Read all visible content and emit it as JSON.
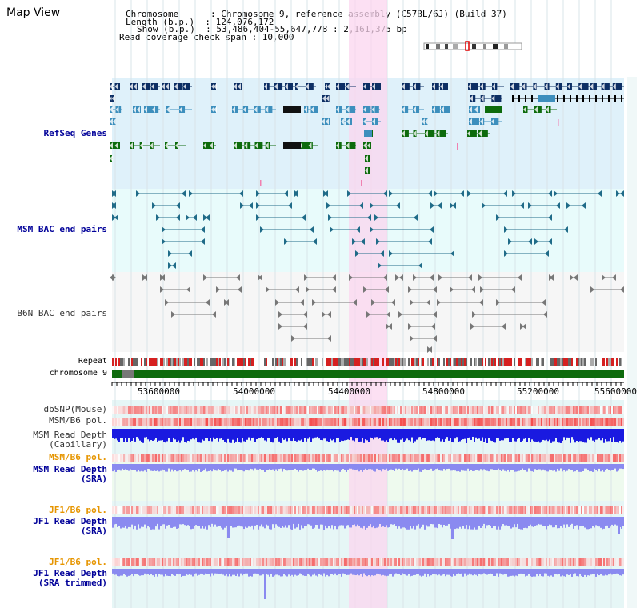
{
  "title": "Map View",
  "info": {
    "line1": "Chromosome      : Chromosome 9, reference assembly (C57BL/6J) (Build 37)",
    "line2": "Length (b.p.)  : 124,076,172",
    "line3": "Show (b.p.)  : 53,486,404-55,647,778 : 2,161,375 bp",
    "line4": "Read coverage check span : 10,000"
  },
  "tracks": {
    "refseq": "RefSeq Genes",
    "msm_bac": "MSM BAC end pairs",
    "b6n_bac": "B6N BAC end pairs",
    "repeat": "Repeat",
    "chromosome": "chromosome 9",
    "dbsnp": "dbSNP(Mouse)",
    "msm_pol": "MSM/B6 pol.",
    "msm_depth_cap_1": "MSM Read Depth",
    "msm_depth_cap_2": "(Capillary)",
    "msm_pol2": "MSM/B6 pol.",
    "msm_depth_sra_1": "MSM Read Depth",
    "msm_depth_sra_2": "(SRA)",
    "jf1_pol": "JF1/B6 pol.",
    "jf1_depth_1": "JF1 Read Depth",
    "jf1_depth_2": "(SRA)",
    "jf1_pol2": "JF1/B6 pol.",
    "jf1_trim_1": "JF1 Read Depth",
    "jf1_trim_2": "(SRA trimmed)"
  },
  "axis": {
    "ticks": [
      "53600000",
      "54000000",
      "54400000",
      "54800000",
      "55200000",
      "55600000"
    ]
  },
  "colors": {
    "highlight": "#fbd6ef",
    "refseq_bg": "#dff1fa",
    "msm_bg": "#e8fbfb",
    "b6n_bg": "#f4f4f4",
    "gene_dark": "#0d2f64",
    "gene_mid": "#3d8fbd",
    "gene_green": "#0d6b0d",
    "bac_msm": "#1f6b88",
    "bac_b6n": "#777777",
    "depth_blue": "#1a1ae0",
    "depth_light": "#8a8af0",
    "label_blue": "#000099",
    "label_orange": "#e69500"
  }
}
